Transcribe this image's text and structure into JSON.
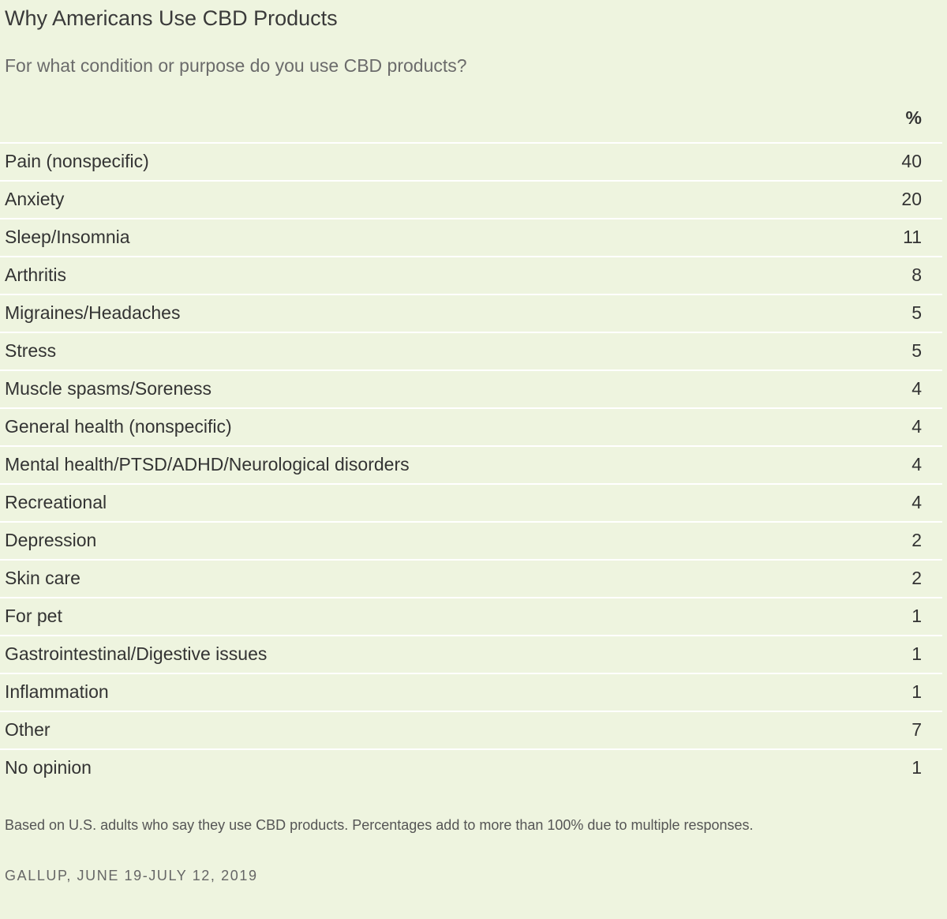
{
  "title": "Why Americans Use CBD Products",
  "subtitle": "For what condition or purpose do you use CBD products?",
  "chart_data": {
    "type": "table",
    "column_header": "%",
    "categories": [
      "Pain (nonspecific)",
      "Anxiety",
      "Sleep/Insomnia",
      "Arthritis",
      "Migraines/Headaches",
      "Stress",
      "Muscle spasms/Soreness",
      "General health (nonspecific)",
      "Mental health/PTSD/ADHD/Neurological disorders",
      "Recreational",
      "Depression",
      "Skin care",
      "For pet",
      "Gastrointestinal/Digestive issues",
      "Inflammation",
      "Other",
      "No opinion"
    ],
    "values": [
      40,
      20,
      11,
      8,
      5,
      5,
      4,
      4,
      4,
      4,
      2,
      2,
      1,
      1,
      1,
      7,
      1
    ]
  },
  "note": "Based on U.S. adults who say they use CBD products. Percentages add to more than 100% due to multiple responses.",
  "source": "GALLUP, JUNE 19-JULY 12, 2019",
  "colors": {
    "background": "#eef4df",
    "divider": "#ffffff",
    "text": "#333333"
  }
}
